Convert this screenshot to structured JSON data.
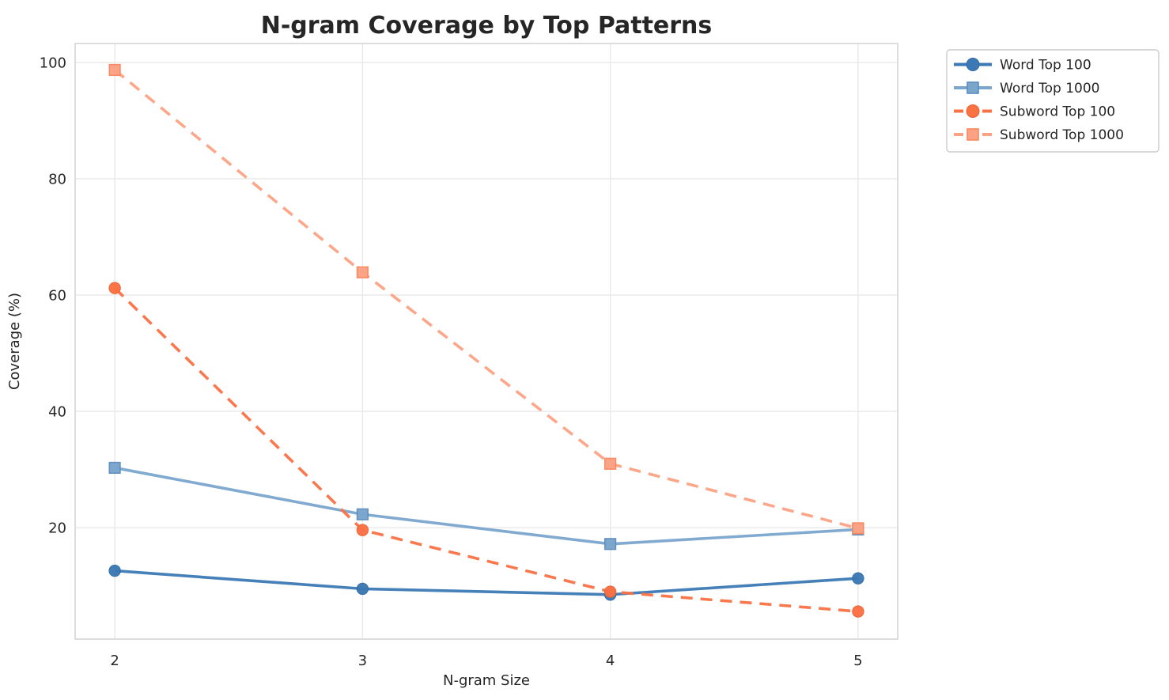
{
  "figure": {
    "background": "#ffffff",
    "text_color": "#262626",
    "grid_color": "#e8e8e8",
    "spine_color": "#d9d9d9",
    "legend_border_color": "#cccccc",
    "legend_background": "#ffffff"
  },
  "chart_data": {
    "type": "line",
    "title": "N-gram Coverage by Top Patterns",
    "xlabel": "N-gram Size",
    "ylabel": "Coverage (%)",
    "x": [
      2,
      3,
      4,
      5
    ],
    "xtick_labels": [
      "2",
      "3",
      "4",
      "5"
    ],
    "ytick_values": [
      20,
      40,
      60,
      80,
      100
    ],
    "ytick_labels": [
      "20",
      "40",
      "60",
      "80",
      "100"
    ],
    "xlim": [
      1.84,
      5.16
    ],
    "ylim": [
      0.85,
      103.25
    ],
    "grid": true,
    "legend_position": "outside-upper-right",
    "series": [
      {
        "name": "Word Top 100",
        "color": "#3c79b4",
        "edge_color": "#2f6ba5",
        "style": "solid",
        "marker": "circle",
        "values": [
          12.6,
          9.5,
          8.5,
          11.3
        ]
      },
      {
        "name": "Word Top 1000",
        "color": "#7aa5cd",
        "edge_color": "#5c8ebd",
        "style": "solid",
        "marker": "square",
        "values": [
          30.3,
          22.3,
          17.2,
          19.7
        ]
      },
      {
        "name": "Subword Top 100",
        "color": "#fa7144",
        "edge_color": "#ef5f31",
        "style": "dashed",
        "marker": "circle",
        "values": [
          61.2,
          19.6,
          9.0,
          5.6
        ]
      },
      {
        "name": "Subword Top 1000",
        "color": "#fca284",
        "edge_color": "#f9885f",
        "style": "dashed",
        "marker": "square",
        "values": [
          98.7,
          63.9,
          31.0,
          19.9
        ]
      }
    ]
  }
}
